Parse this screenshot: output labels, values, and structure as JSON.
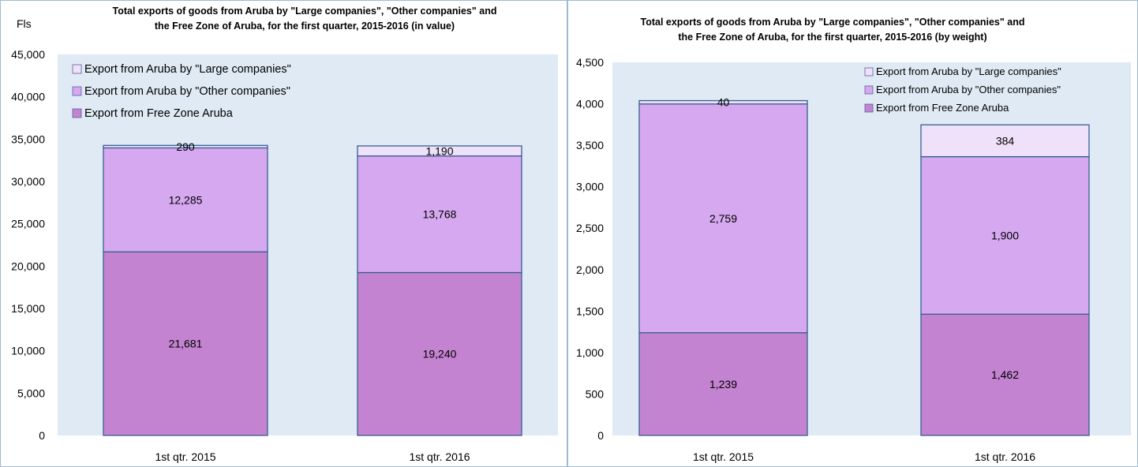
{
  "chart_data": [
    {
      "type": "bar",
      "stacked": true,
      "title": "Total exports of goods from Aruba by \"Large companies\", \"Other companies\" and the Free Zone of Aruba, for the first quarter, 2015-2016 (in value)",
      "title_lines": [
        "Total exports of goods from Aruba by \"Large companies\", \"Other companies\" and",
        "the Free Zone of Aruba, for the first quarter, 2015-2016 (in value)"
      ],
      "y_unit_label": "Fls",
      "xlabel": "",
      "ylabel": "",
      "ylim": [
        0,
        45000
      ],
      "y_ticks": [
        0,
        5000,
        10000,
        15000,
        20000,
        25000,
        30000,
        35000,
        40000,
        45000
      ],
      "y_tick_labels": [
        "0",
        "5,000",
        "10,000",
        "15,000",
        "20,000",
        "25,000",
        "30,000",
        "35,000",
        "40,000",
        "45,000"
      ],
      "categories": [
        "1st qtr. 2015",
        "1st qtr. 2016"
      ],
      "series": [
        {
          "name": "Export from Free Zone Aruba",
          "values": [
            21681,
            19240
          ],
          "labels": [
            "21,681",
            "19,240"
          ],
          "color": "#c383d0"
        },
        {
          "name": "Export from Aruba by \"Other companies\"",
          "values": [
            12285,
            13768
          ],
          "labels": [
            "12,285",
            "13,768"
          ],
          "color": "#d5a8f0"
        },
        {
          "name": "Export from Aruba by \"Large companies\"",
          "values": [
            290,
            1190
          ],
          "labels": [
            "290",
            "1,190"
          ],
          "color": "#efe1f9"
        }
      ],
      "legend_position": "top-left",
      "legend_order": [
        2,
        1,
        0
      ],
      "grid": false,
      "plot_background": "#dfeaf5",
      "bar_border_color": "#376092"
    },
    {
      "type": "bar",
      "stacked": true,
      "title": "Total exports of goods from Aruba by \"Large companies\", \"Other companies\" and the Free Zone of Aruba, for the first quarter, 2015-2016 (by weight)",
      "title_lines": [
        "Total exports of goods from Aruba by \"Large companies\", \"Other companies\" and",
        "the Free Zone of Aruba, for the first quarter, 2015-2016 (by weight)"
      ],
      "xlabel": "",
      "ylabel": "",
      "ylim": [
        0,
        4500
      ],
      "y_ticks": [
        0,
        500,
        1000,
        1500,
        2000,
        2500,
        3000,
        3500,
        4000,
        4500
      ],
      "y_tick_labels": [
        "0",
        "500",
        "1,000",
        "1,500",
        "2,000",
        "2,500",
        "3,000",
        "3,500",
        "4,000",
        "4,500"
      ],
      "categories": [
        "1st qtr. 2015",
        "1st qtr. 2016"
      ],
      "series": [
        {
          "name": "Export from Free Zone Aruba",
          "values": [
            1239,
            1462
          ],
          "labels": [
            "1,239",
            "1,462"
          ],
          "color": "#c383d0"
        },
        {
          "name": "Export from Aruba by \"Other companies\"",
          "values": [
            2759,
            1900
          ],
          "labels": [
            "2,759",
            "1,900"
          ],
          "color": "#d5a8f0"
        },
        {
          "name": "Export from Aruba by \"Large companies\"",
          "values": [
            40,
            384
          ],
          "labels": [
            "40",
            "384"
          ],
          "color": "#efe1f9"
        }
      ],
      "legend_position": "top-right",
      "legend_order": [
        2,
        1,
        0
      ],
      "grid": false,
      "plot_background": "#dfeaf5",
      "bar_border_color": "#376092"
    }
  ]
}
